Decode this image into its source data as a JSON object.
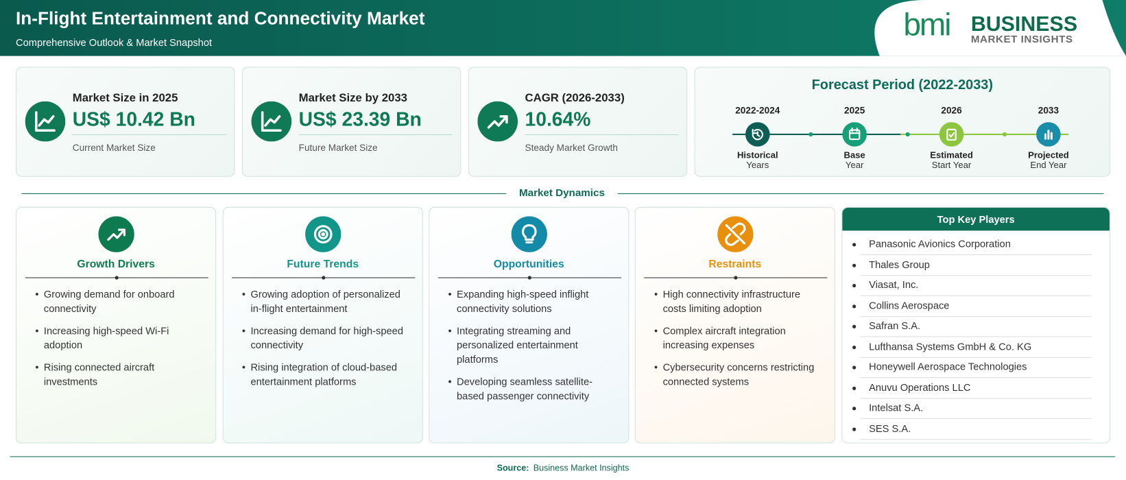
{
  "header": {
    "title": "In-Flight Entertainment and Connectivity Market",
    "subtitle": "Comprehensive Outlook & Market Snapshot",
    "logo": {
      "mark": "bmi",
      "name": "BUSINESS",
      "tagline": "MARKET INSIGHTS"
    }
  },
  "stats": [
    {
      "label": "Market Size in 2025",
      "value": "US$ 10.42 Bn",
      "note": "Current Market Size"
    },
    {
      "label": "Market Size by 2033",
      "value": "US$ 23.39 Bn",
      "note": "Future Market Size"
    },
    {
      "label": "CAGR (2026-2033)",
      "value": "10.64%",
      "note": "Steady Market Growth"
    }
  ],
  "forecast": {
    "title": "Forecast Period (2022-2033)",
    "steps": [
      {
        "years": "2022-2024",
        "label": "Historical",
        "sub": "Years"
      },
      {
        "years": "2025",
        "label": "Base",
        "sub": "Year"
      },
      {
        "years": "2026",
        "label": "Estimated",
        "sub": "Start Year"
      },
      {
        "years": "2033",
        "label": "Projected",
        "sub": "End Year"
      }
    ]
  },
  "dynamics": {
    "title": "Market Dynamics",
    "columns": [
      {
        "title": "Growth Drivers",
        "items": [
          "Growing demand for onboard connectivity",
          "Increasing high-speed Wi-Fi adoption",
          "Rising connected aircraft investments"
        ]
      },
      {
        "title": "Future Trends",
        "items": [
          "Growing adoption of personalized in-flight entertainment",
          "Increasing demand for high-speed connectivity",
          "Rising integration of cloud-based entertainment platforms"
        ]
      },
      {
        "title": "Opportunities",
        "items": [
          "Expanding high-speed inflight connectivity solutions",
          "Integrating streaming and personalized entertainment platforms",
          "Developing seamless satellite-based passenger connectivity"
        ]
      },
      {
        "title": "Restraints",
        "items": [
          "High connectivity infrastructure costs limiting adoption",
          "Complex aircraft integration increasing expenses",
          "Cybersecurity concerns restricting connected systems"
        ]
      }
    ]
  },
  "players": {
    "title": "Top Key Players",
    "items": [
      "Panasonic Avionics Corporation",
      "Thales Group",
      "Viasat, Inc.",
      "Collins Aerospace",
      "Safran S.A.",
      "Lufthansa Systems GmbH & Co. KG",
      "Honeywell Aerospace Technologies",
      "Anuvu Operations LLC",
      "Intelsat S.A.",
      "SES S.A."
    ]
  },
  "source": {
    "label": "Source:",
    "text": "Business Market Insights"
  }
}
